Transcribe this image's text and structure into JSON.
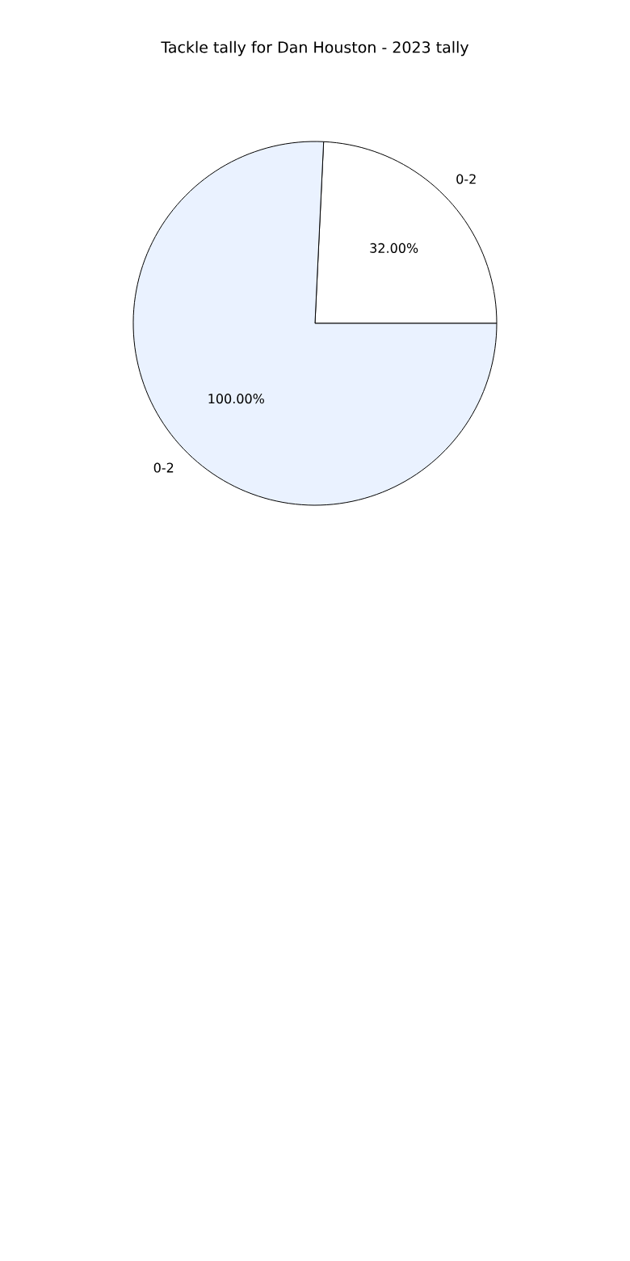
{
  "chart_data": {
    "type": "pie",
    "title": "Tackle tally for Dan Houston - 2023 tally",
    "categories": [
      "0-2",
      "0-2"
    ],
    "values": [
      32,
      100
    ],
    "value_labels": [
      "32.00%",
      "100.00%"
    ],
    "colors": [
      "#ffffff",
      "#eaf2ff"
    ]
  }
}
